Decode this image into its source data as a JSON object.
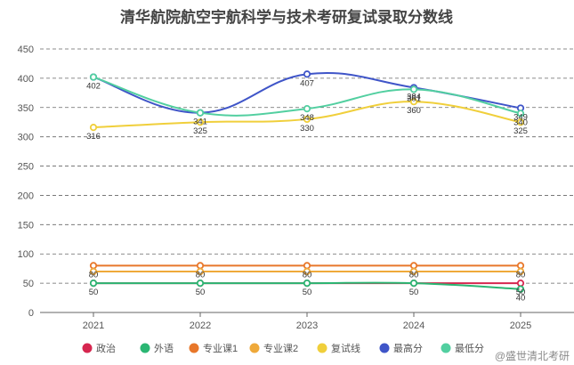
{
  "chart_data": {
    "type": "line",
    "title": "清华航院航空宇航科学与技术考研复试录取分数线",
    "categories": [
      "2021",
      "2022",
      "2023",
      "2024",
      "2025"
    ],
    "ylim": [
      0,
      450
    ],
    "yticks": [
      0,
      50,
      100,
      150,
      200,
      250,
      300,
      350,
      400,
      450
    ],
    "grid": true,
    "grid_style": "dashed",
    "legend_position": "bottom",
    "series": [
      {
        "name": "政治",
        "color": "#d6264f",
        "values": [
          50,
          50,
          50,
          50,
          50
        ],
        "labels": [
          "50",
          "50",
          "50",
          "50",
          "50"
        ]
      },
      {
        "name": "外语",
        "color": "#2bb673",
        "values": [
          50,
          50,
          50,
          50,
          40
        ],
        "labels": [
          "",
          "",
          "",
          "",
          "40"
        ]
      },
      {
        "name": "专业课1",
        "color": "#e8772a",
        "values": [
          80,
          80,
          80,
          80,
          80
        ],
        "labels": [
          "80",
          "80",
          "80",
          "80",
          "80"
        ]
      },
      {
        "name": "专业课2",
        "color": "#efa93a",
        "values": [
          70,
          70,
          70,
          70,
          70
        ],
        "labels": [
          "",
          "",
          "",
          "",
          ""
        ]
      },
      {
        "name": "复试线",
        "color": "#f0cf3b",
        "values": [
          316,
          325,
          330,
          360,
          325
        ],
        "labels": [
          "316",
          "325",
          "330",
          "360",
          "325"
        ]
      },
      {
        "name": "最高分",
        "color": "#3f55c8",
        "values": [
          402,
          341,
          407,
          384,
          349
        ],
        "labels": [
          "",
          "",
          "407",
          "384",
          "349"
        ]
      },
      {
        "name": "最低分",
        "color": "#52cfa0",
        "values": [
          402,
          341,
          348,
          381,
          340
        ],
        "labels": [
          "402",
          "341",
          "348",
          "381",
          "340"
        ]
      }
    ]
  },
  "watermark": "@盛世清北考研"
}
